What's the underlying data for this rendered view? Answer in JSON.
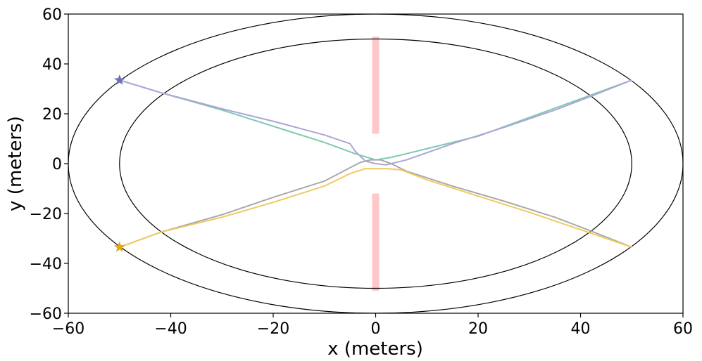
{
  "chart_data": {
    "type": "line",
    "title": "",
    "xlabel": "x (meters)",
    "ylabel": "y (meters)",
    "xlim": [
      -60,
      60
    ],
    "ylim": [
      -60,
      60
    ],
    "xticks": [
      -60,
      -40,
      -20,
      0,
      20,
      40,
      60
    ],
    "yticks": [
      -60,
      -40,
      -20,
      0,
      20,
      40,
      60
    ],
    "xtick_labels": [
      "−60",
      "−40",
      "−20",
      "0",
      "20",
      "40",
      "60"
    ],
    "ytick_labels": [
      "−60",
      "−40",
      "−20",
      "0",
      "20",
      "40",
      "60"
    ],
    "grid": false,
    "ellipses": [
      {
        "cx": 0,
        "cy": 0,
        "rx": 60,
        "ry": 60,
        "color": "#000000"
      },
      {
        "cx": 0,
        "cy": 0,
        "rx": 50,
        "ry": 50,
        "color": "#000000"
      }
    ],
    "obstacles": [
      {
        "x": 0,
        "y1": 12,
        "y2": 51,
        "color": "#ffc8c8"
      },
      {
        "x": 0,
        "y1": -51,
        "y2": -12,
        "color": "#ffc8c8"
      }
    ],
    "series": [
      {
        "color": "#7fc9ae",
        "start_color": "#1b9e77",
        "points": [
          [
            -50,
            33.5
          ],
          [
            -42,
            28.5
          ],
          [
            -30,
            21.5
          ],
          [
            -20,
            15
          ],
          [
            -10,
            8.5
          ],
          [
            -4,
            4
          ],
          [
            0,
            1.5
          ],
          [
            3,
            2.5
          ],
          [
            6,
            4
          ],
          [
            12,
            7
          ],
          [
            20,
            11
          ],
          [
            30,
            18.5
          ],
          [
            42,
            27.5
          ],
          [
            50,
            33.5
          ]
        ]
      },
      {
        "color": "#aca7d4",
        "start_color": "#7570b3",
        "points": [
          [
            -50,
            33.5
          ],
          [
            -42,
            28.5
          ],
          [
            -30,
            22
          ],
          [
            -20,
            17
          ],
          [
            -10,
            11.5
          ],
          [
            -5,
            8
          ],
          [
            -4,
            5
          ],
          [
            -2,
            1
          ],
          [
            0,
            0
          ],
          [
            2,
            -0.5
          ],
          [
            6,
            1.5
          ],
          [
            15,
            8
          ],
          [
            25,
            14.5
          ],
          [
            35,
            21.5
          ],
          [
            42,
            27
          ],
          [
            50,
            33.5
          ]
        ]
      },
      {
        "color": "#a9a9a9",
        "start_color": "#666666",
        "points": [
          [
            -50,
            -33.5
          ],
          [
            -42,
            -27.5
          ],
          [
            -30,
            -20.5
          ],
          [
            -20,
            -13.5
          ],
          [
            -10,
            -7
          ],
          [
            -3,
            0.5
          ],
          [
            -1,
            1.5
          ],
          [
            1,
            1.5
          ],
          [
            3,
            0
          ],
          [
            6,
            -3
          ],
          [
            15,
            -9
          ],
          [
            25,
            -15
          ],
          [
            35,
            -21.5
          ],
          [
            42,
            -27
          ],
          [
            50,
            -33.5
          ]
        ]
      },
      {
        "color": "#efcb5e",
        "start_color": "#e6ab02",
        "points": [
          [
            -50,
            -33.5
          ],
          [
            -42,
            -27.5
          ],
          [
            -30,
            -21.5
          ],
          [
            -20,
            -15.5
          ],
          [
            -10,
            -9
          ],
          [
            -5,
            -4
          ],
          [
            -2,
            -2
          ],
          [
            2,
            -2
          ],
          [
            5,
            -2.5
          ],
          [
            10,
            -6.5
          ],
          [
            20,
            -13
          ],
          [
            30,
            -19.5
          ],
          [
            40,
            -26.5
          ],
          [
            50,
            -33.5
          ]
        ]
      }
    ]
  }
}
